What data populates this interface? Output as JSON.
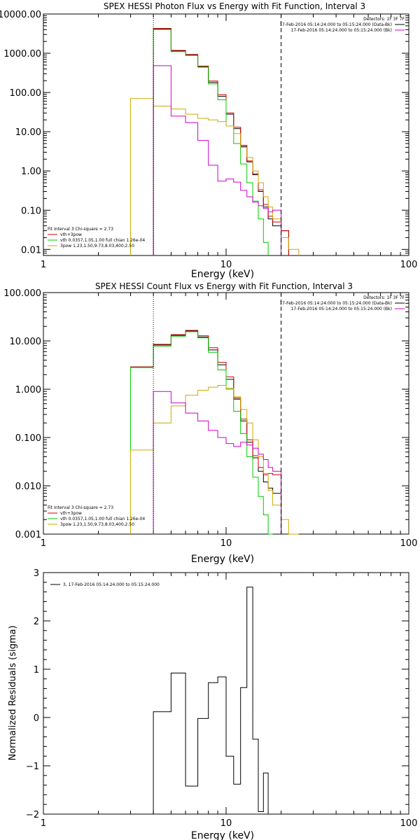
{
  "chart_data": [
    {
      "type": "line",
      "title": "SPEX HESSI Photon Flux vs Energy with Fit Function, Interval 3",
      "xlabel": "Energy (keV)",
      "ylabel": "",
      "xscale": "log",
      "yscale": "log",
      "xlim": [
        1,
        100
      ],
      "ylim": [
        0.007,
        10000
      ],
      "xtick_labels": [
        "1",
        "10",
        "100"
      ],
      "ytick_labels": [
        "0.01",
        "0.10",
        "1.00",
        "10.00",
        "100.00",
        "1000.00",
        "10000.00"
      ],
      "legend_top_right": {
        "header": "Detectors: 1F 3F 7F",
        "entries": [
          {
            "text": "17-Feb-2016 05:14:24.000 to 05:15:24.000 (Data-Bk)",
            "color": "#000000"
          },
          {
            "text": "17-Feb-2016 05:14:24.000 to 05:15:24.000 (Bk)",
            "color": "#cc00cc"
          }
        ]
      },
      "legend_bottom_left": {
        "header": "Fit Interval 3   Chi-square = 2.73",
        "entries": [
          {
            "text": "vth+3pow",
            "color": "#cc0000"
          },
          {
            "text": "vth 0.0357,1.05,1.00  full chian 1.26e-04",
            "color": "#00cc00"
          },
          {
            "text": "3pow 1.23,1.50,9.73,8.03,400,2.50",
            "color": "#ccaa00"
          }
        ]
      },
      "vlines": [
        {
          "x": 4.0,
          "style": "dotted",
          "color": "#000000"
        },
        {
          "x": 20.0,
          "style": "dashed",
          "color": "#000000"
        }
      ],
      "edges": [
        3,
        4,
        5,
        6,
        7,
        8,
        9,
        10,
        11,
        12,
        13,
        14,
        15,
        16,
        17,
        18,
        20,
        22,
        25
      ],
      "series": [
        {
          "name": "Data-Bk",
          "color": "#000000",
          "values": [
            null,
            4200,
            1150,
            900,
            450,
            180,
            80,
            28,
            12,
            4.2,
            1.7,
            0.8,
            0.3,
            0.12,
            0.06,
            0.04,
            0.03,
            null
          ]
        },
        {
          "name": "vth+3pow",
          "color": "#cc0000",
          "values": [
            null,
            4300,
            1180,
            930,
            470,
            195,
            88,
            30,
            13,
            4.5,
            1.8,
            0.85,
            0.33,
            0.14,
            0.07,
            0.05,
            0.03,
            null
          ]
        },
        {
          "name": "vth",
          "color": "#00cc00",
          "values": [
            null,
            4000,
            1100,
            880,
            440,
            165,
            65,
            14,
            5,
            1.5,
            0.5,
            0.17,
            0.06,
            0.015,
            null,
            null,
            null,
            null
          ]
        },
        {
          "name": "3pow",
          "color": "#ccaa00",
          "values": [
            70,
            45,
            38,
            28,
            22,
            20,
            18,
            14,
            9,
            4,
            2.2,
            1.0,
            0.5,
            0.22,
            0.12,
            0.06,
            0.02,
            0.01
          ]
        },
        {
          "name": "Bk",
          "color": "#cc00cc",
          "values": [
            null,
            480,
            25,
            17,
            6,
            1.4,
            0.55,
            0.62,
            0.52,
            0.32,
            0.22,
            0.16,
            0.13,
            0.11,
            0.09,
            0.1,
            null,
            null
          ]
        }
      ]
    },
    {
      "type": "line",
      "title": "SPEX HESSI Count Flux vs Energy with Fit Function, Interval 3",
      "xlabel": "Energy (keV)",
      "ylabel": "",
      "xscale": "log",
      "yscale": "log",
      "xlim": [
        1,
        100
      ],
      "ylim": [
        0.001,
        100
      ],
      "xtick_labels": [
        "1",
        "10",
        "100"
      ],
      "ytick_labels": [
        "0.001",
        "0.010",
        "0.100",
        "1.000",
        "10.000",
        "100.000"
      ],
      "legend_top_right": {
        "header": "Detectors: 1F 3F 7F",
        "entries": [
          {
            "text": "17-Feb-2016 05:14:24.000 to 05:15:24.000 (Data-Bk)",
            "color": "#000000"
          },
          {
            "text": "17-Feb-2016 05:14:24.000 to 05:15:24.000 (Bk)",
            "color": "#cc00cc"
          }
        ]
      },
      "legend_bottom_left": {
        "header": "Fit Interval 3   Chi-square = 2.73",
        "entries": [
          {
            "text": "vth+3pow",
            "color": "#cc0000"
          },
          {
            "text": "vth 0.0357,1.05,1.00  full chian 1.26e-04",
            "color": "#00cc00"
          },
          {
            "text": "3pow 1.23,1.50,9.73,8.03,400,2.50",
            "color": "#ccaa00"
          }
        ]
      },
      "vlines": [
        {
          "x": 4.0,
          "style": "dotted",
          "color": "#000000"
        },
        {
          "x": 20.0,
          "style": "dashed",
          "color": "#000000"
        }
      ],
      "edges": [
        3,
        4,
        5,
        6,
        7,
        8,
        9,
        10,
        11,
        12,
        13,
        14,
        15,
        16,
        17,
        18,
        20,
        22,
        25
      ],
      "series": [
        {
          "name": "Data-Bk",
          "color": "#000000",
          "values": [
            2.9,
            8.2,
            13,
            16,
            12,
            6.5,
            3.2,
            1.6,
            0.62,
            0.22,
            0.08,
            0.038,
            0.02,
            0.012,
            0.009,
            0.007,
            null,
            null
          ]
        },
        {
          "name": "vth+3pow",
          "color": "#cc0000",
          "values": [
            2.9,
            8.5,
            13.5,
            16.5,
            12.8,
            7.2,
            3.6,
            1.8,
            0.66,
            0.24,
            0.09,
            0.042,
            0.024,
            0.017,
            0.018,
            0.017,
            null,
            null
          ]
        },
        {
          "name": "vth",
          "color": "#00cc00",
          "values": [
            2.8,
            7.8,
            12.5,
            15.5,
            11.5,
            5.8,
            2.5,
            1.0,
            0.35,
            0.12,
            0.04,
            0.015,
            0.006,
            0.0025,
            0.001,
            null,
            null,
            null
          ]
        },
        {
          "name": "3pow",
          "color": "#ccaa00",
          "values": [
            0.055,
            0.2,
            0.45,
            0.75,
            0.95,
            1.1,
            1.2,
            1.05,
            0.7,
            0.38,
            0.2,
            0.09,
            0.04,
            0.018,
            0.008,
            0.004,
            0.002,
            0.001
          ]
        },
        {
          "name": "Bk",
          "color": "#cc00cc",
          "values": [
            null,
            0.9,
            0.52,
            0.32,
            0.22,
            0.14,
            0.1,
            0.075,
            0.065,
            0.08,
            0.07,
            0.06,
            0.045,
            0.035,
            0.024,
            0.02,
            null,
            null
          ]
        }
      ]
    },
    {
      "type": "line",
      "title": "",
      "xlabel": "Energy (keV)",
      "ylabel": "Normalized Residuals (sigma)",
      "xscale": "log",
      "yscale": "linear",
      "xlim": [
        1,
        100
      ],
      "ylim": [
        -2,
        3
      ],
      "xtick_labels": [
        "1",
        "10",
        "100"
      ],
      "ytick_labels": [
        "3",
        "2",
        "1",
        "0",
        "−1",
        "−2"
      ],
      "legend_top_left": {
        "entries": [
          {
            "text": "3, 17-Feb-2016 05:14:24.000 to 05:15:24.000",
            "color": "#000000"
          }
        ]
      },
      "edges": [
        4,
        5,
        6,
        7,
        8,
        9,
        10,
        11,
        12,
        13,
        14,
        15,
        16,
        17,
        18,
        20
      ],
      "series": [
        {
          "name": "3, 17-Feb-2016 05:14:24.000 to 05:15:24.000",
          "color": "#000000",
          "values": [
            0.12,
            0.92,
            -1.42,
            -0.02,
            0.72,
            0.84,
            -0.8,
            -1.38,
            0.62,
            2.7,
            -0.45,
            -1.95,
            -1.15,
            null,
            null
          ]
        }
      ]
    }
  ]
}
